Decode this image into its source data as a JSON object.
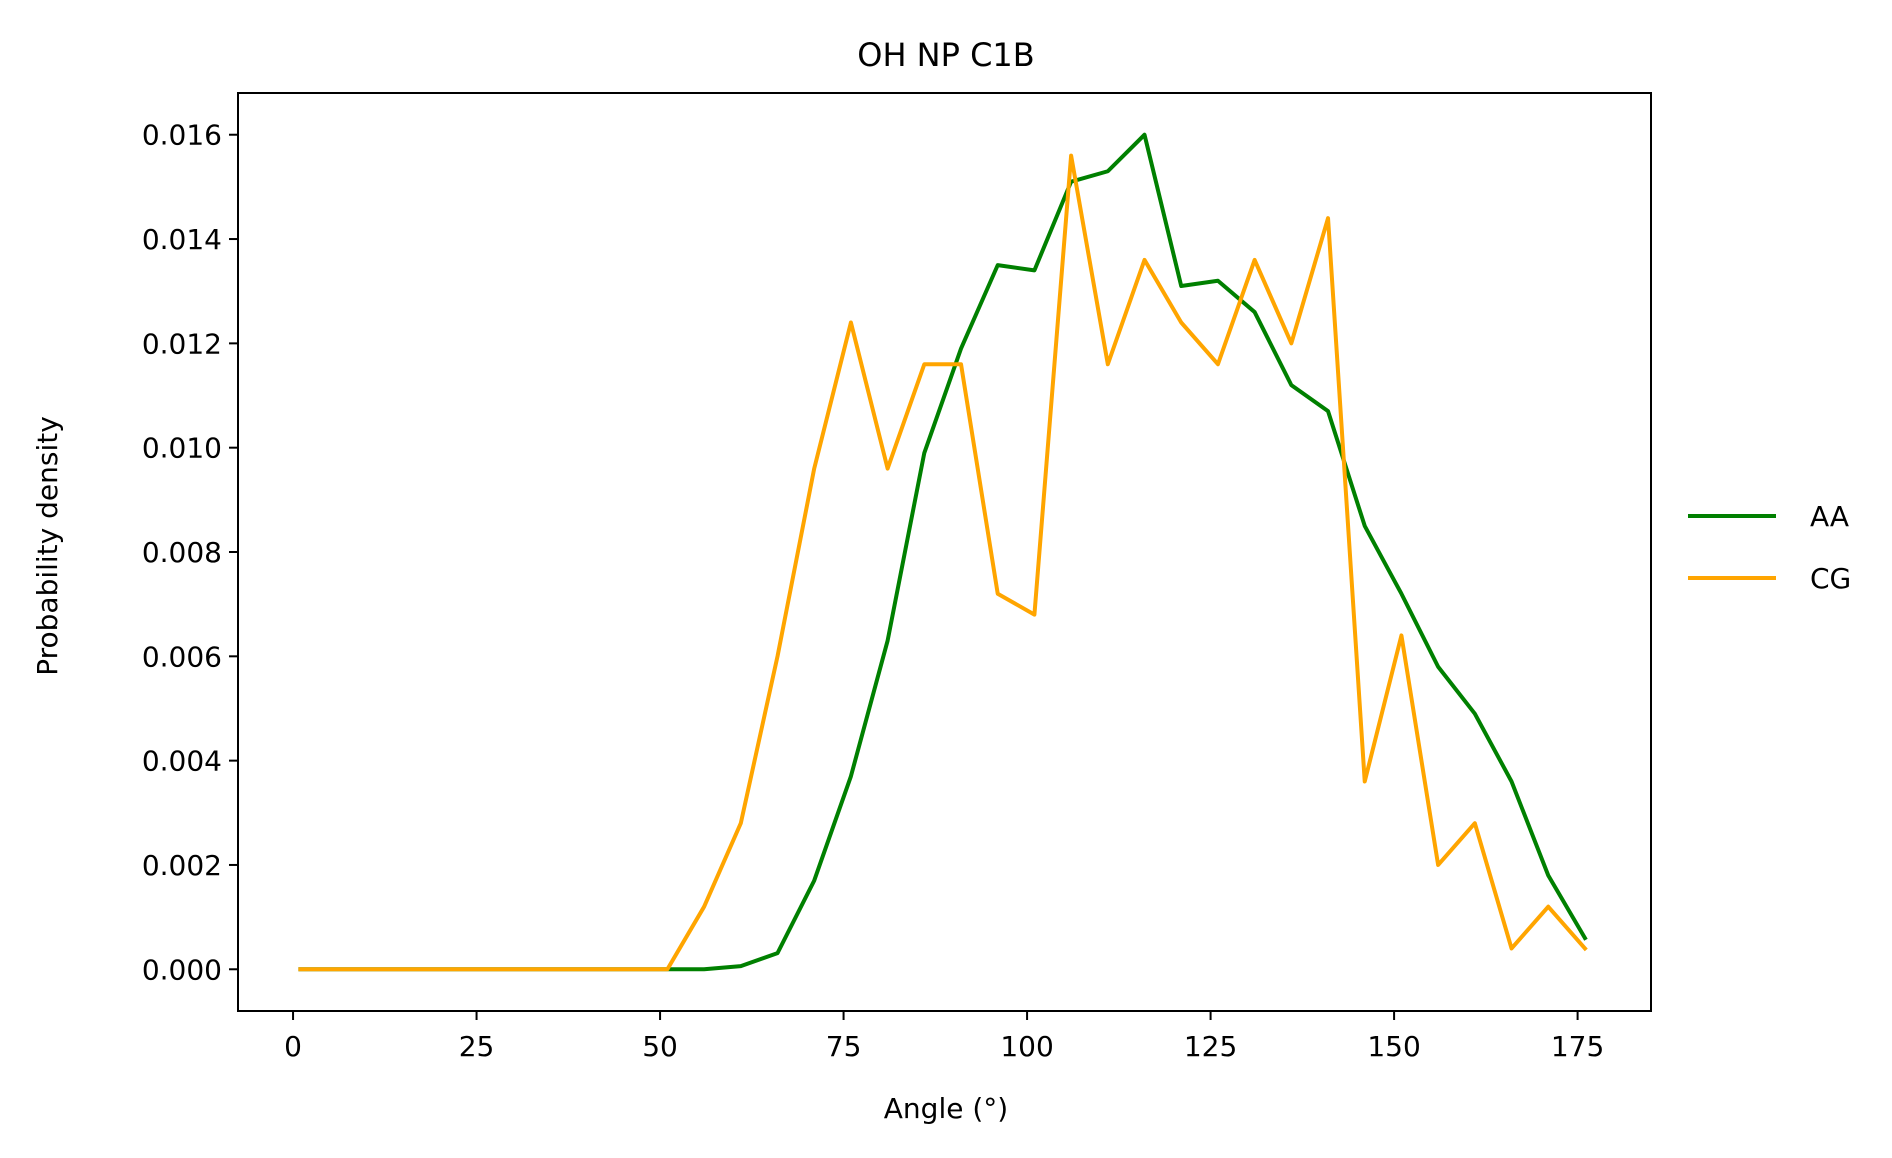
{
  "chart_data": {
    "type": "line",
    "title": "OH NP C1B",
    "xlabel": "Angle (°)",
    "ylabel": "Probability density",
    "xlim": [
      -7.5,
      185
    ],
    "ylim": [
      -0.0008,
      0.0168
    ],
    "xticks": [
      0,
      25,
      50,
      75,
      100,
      125,
      150,
      175
    ],
    "xtick_labels": [
      "0",
      "25",
      "50",
      "75",
      "100",
      "125",
      "150",
      "175"
    ],
    "yticks": [
      0.0,
      0.002,
      0.004,
      0.006,
      0.008,
      0.01,
      0.012,
      0.014,
      0.016
    ],
    "ytick_labels": [
      "0.000",
      "0.002",
      "0.004",
      "0.006",
      "0.008",
      "0.010",
      "0.012",
      "0.014",
      "0.016"
    ],
    "grid": false,
    "legend_position": "right, outside plot",
    "x": [
      1,
      6,
      11,
      16,
      21,
      26,
      31,
      36,
      41,
      46,
      51,
      56,
      61,
      66,
      71,
      76,
      81,
      86,
      91,
      96,
      101,
      106,
      111,
      116,
      121,
      126,
      131,
      136,
      141,
      146,
      151,
      156,
      161,
      166,
      171,
      176
    ],
    "series": [
      {
        "name": "AA",
        "color": "#008000",
        "values": [
          0,
          0,
          0,
          0,
          0,
          0,
          0,
          0,
          0,
          0,
          0,
          0,
          6e-05,
          0.00031,
          0.0017,
          0.0037,
          0.0063,
          0.0099,
          0.0119,
          0.0135,
          0.0134,
          0.0151,
          0.0153,
          0.016,
          0.0131,
          0.0132,
          0.0126,
          0.0112,
          0.0107,
          0.0085,
          0.0072,
          0.0058,
          0.0049,
          0.0036,
          0.0018,
          0.0006
        ]
      },
      {
        "name": "CG",
        "color": "#FFA500",
        "values": [
          0,
          0,
          0,
          0,
          0,
          0,
          0,
          0,
          0,
          0,
          0,
          0.0012,
          0.0028,
          0.006,
          0.0096,
          0.0124,
          0.0096,
          0.0116,
          0.0116,
          0.0072,
          0.0068,
          0.0156,
          0.0116,
          0.0136,
          0.0124,
          0.0116,
          0.0136,
          0.012,
          0.0144,
          0.0036,
          0.0064,
          0.002,
          0.0028,
          0.0004,
          0.0012,
          0.0004
        ]
      }
    ]
  }
}
